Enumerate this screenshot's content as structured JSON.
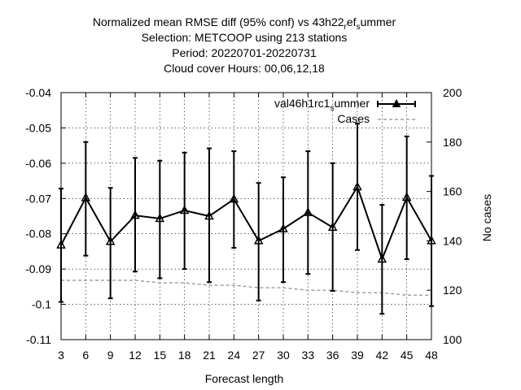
{
  "chart_data": {
    "type": "line",
    "title_lines": [
      [
        "Normalized mean RMSE diff (95% conf) vs 43h22",
        "r",
        "ef",
        "s",
        "ummer"
      ],
      [
        "Selection: METCOOP using   213 stations"
      ],
      [
        "Period: 20220701-20220731"
      ],
      [
        "Cloud cover   Hours:  00,06,12,18"
      ]
    ],
    "xlabel": "Forecast length",
    "y2label": "No cases",
    "x": [
      3,
      6,
      9,
      12,
      15,
      18,
      21,
      24,
      27,
      30,
      33,
      36,
      39,
      42,
      45,
      48
    ],
    "xlim": [
      3,
      48
    ],
    "ylim": [
      -0.11,
      -0.04
    ],
    "y2lim": [
      100,
      200
    ],
    "x_ticks": [
      "3",
      "6",
      "9",
      "12",
      "15",
      "18",
      "21",
      "24",
      "27",
      "30",
      "33",
      "36",
      "39",
      "42",
      "45",
      "48"
    ],
    "y_ticks": [
      "-0.04",
      "-0.05",
      "-0.06",
      "-0.07",
      "-0.08",
      "-0.09",
      "-0.1",
      "-0.11"
    ],
    "y2_ticks": [
      "200",
      "180",
      "160",
      "140",
      "120",
      "100"
    ],
    "grid": true,
    "legend_position": "top-right",
    "series": [
      {
        "name": [
          "val46h1rc1",
          "s",
          "ummer"
        ],
        "axis": "y",
        "style": "line-triangles-errorbars",
        "color": "#000000",
        "values": [
          -0.0832,
          -0.0698,
          -0.0822,
          -0.0748,
          -0.0757,
          -0.0734,
          -0.075,
          -0.0702,
          -0.082,
          -0.0786,
          -0.074,
          -0.0782,
          -0.0667,
          -0.0872,
          -0.0697,
          -0.082
        ],
        "lower": [
          -0.0993,
          -0.0862,
          -0.0983,
          -0.0907,
          -0.0926,
          -0.09,
          -0.0937,
          -0.084,
          -0.0989,
          -0.0937,
          -0.0914,
          -0.0962,
          -0.0846,
          -0.1027,
          -0.0872,
          -0.1005
        ],
        "upper": [
          -0.0672,
          -0.054,
          -0.067,
          -0.0585,
          -0.0593,
          -0.057,
          -0.0558,
          -0.0566,
          -0.0656,
          -0.064,
          -0.0566,
          -0.06,
          -0.0488,
          -0.0718,
          -0.0524,
          -0.0636
        ]
      },
      {
        "name": [
          "Cases"
        ],
        "axis": "y2",
        "style": "dashed",
        "color": "#a0a0a0",
        "values": [
          124,
          124,
          124,
          124,
          123,
          123,
          122,
          122,
          121,
          121,
          120,
          120,
          119,
          119,
          118,
          118
        ]
      }
    ]
  }
}
